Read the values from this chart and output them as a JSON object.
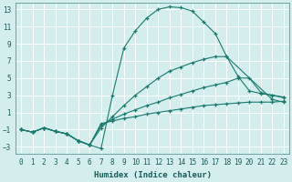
{
  "xlabel": "Humidex (Indice chaleur)",
  "bg_color": "#d4eded",
  "grid_color": "#ffffff",
  "line_color": "#1a7a6e",
  "xlim": [
    -0.5,
    23.5
  ],
  "ylim": [
    -3.8,
    13.8
  ],
  "yticks": [
    -3,
    -1,
    1,
    3,
    5,
    7,
    9,
    11,
    13
  ],
  "xticks": [
    0,
    1,
    2,
    3,
    4,
    5,
    6,
    7,
    8,
    9,
    10,
    11,
    12,
    13,
    14,
    15,
    16,
    17,
    18,
    19,
    20,
    21,
    22,
    23
  ],
  "lines": [
    {
      "x": [
        0,
        1,
        2,
        3,
        4,
        5,
        6,
        7,
        8,
        9,
        10,
        11,
        12,
        13,
        14,
        15,
        16,
        17,
        18,
        22,
        23
      ],
      "y": [
        -1,
        -1.3,
        -0.8,
        -1.2,
        -1.5,
        -2.3,
        -2.8,
        -3.2,
        3.0,
        8.5,
        10.5,
        12.0,
        13.0,
        13.3,
        13.2,
        12.8,
        11.5,
        10.2,
        7.5,
        2.5,
        2.2
      ]
    },
    {
      "x": [
        0,
        1,
        2,
        3,
        4,
        5,
        6,
        7,
        8,
        9,
        10,
        11,
        12,
        13,
        14,
        15,
        16,
        17,
        18,
        19,
        20,
        21,
        22,
        23
      ],
      "y": [
        -1,
        -1.3,
        -0.8,
        -1.2,
        -1.5,
        -2.3,
        -2.8,
        -0.8,
        0.5,
        1.8,
        3.0,
        4.0,
        5.0,
        5.8,
        6.3,
        6.8,
        7.2,
        7.5,
        7.5,
        5.2,
        3.5,
        3.2,
        3.0,
        2.8
      ]
    },
    {
      "x": [
        0,
        1,
        2,
        3,
        4,
        5,
        6,
        7,
        8,
        9,
        10,
        11,
        12,
        13,
        14,
        15,
        16,
        17,
        18,
        19,
        20,
        21,
        22,
        23
      ],
      "y": [
        -1,
        -1.3,
        -0.8,
        -1.2,
        -1.5,
        -2.3,
        -2.8,
        -0.5,
        0.2,
        0.8,
        1.3,
        1.8,
        2.2,
        2.7,
        3.1,
        3.5,
        3.9,
        4.2,
        4.5,
        5.0,
        5.0,
        3.3,
        3.0,
        2.7
      ]
    },
    {
      "x": [
        0,
        1,
        2,
        3,
        4,
        5,
        6,
        7,
        8,
        9,
        10,
        11,
        12,
        13,
        14,
        15,
        16,
        17,
        18,
        19,
        20,
        21,
        22,
        23
      ],
      "y": [
        -1,
        -1.3,
        -0.8,
        -1.2,
        -1.5,
        -2.3,
        -2.8,
        -0.3,
        0.0,
        0.3,
        0.5,
        0.8,
        1.0,
        1.2,
        1.4,
        1.6,
        1.8,
        1.9,
        2.0,
        2.1,
        2.2,
        2.2,
        2.2,
        2.3
      ]
    }
  ]
}
